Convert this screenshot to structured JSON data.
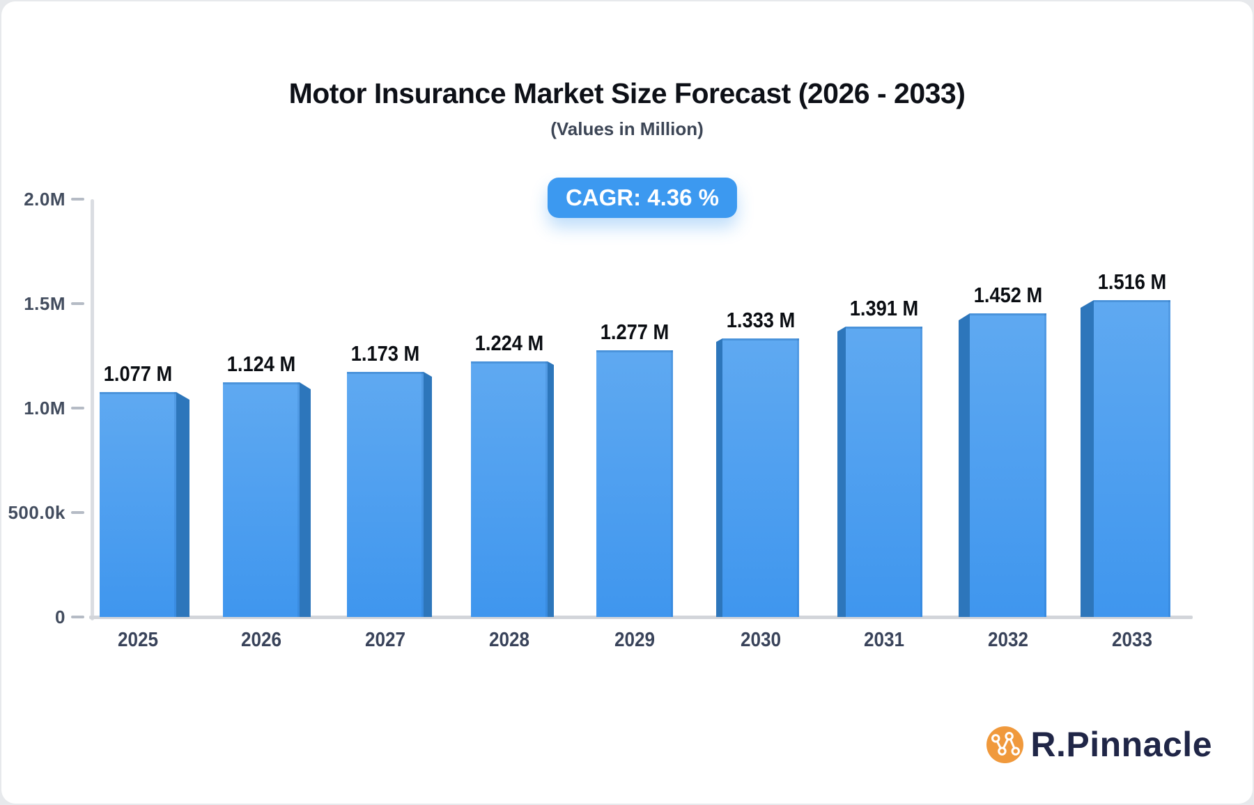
{
  "page": {
    "title": "Motor Insurance Market Size Forecast (2026 - 2033)",
    "subtitle": "(Values in Million)",
    "badge": "CAGR: 4.36 %",
    "logo_text": "R.Pinnacle",
    "logo_icon": "network-graph-icon"
  },
  "colors": {
    "page_bg": "#e7e9ec",
    "card": "#ffffff",
    "title": "#0d1017",
    "subtitle": "#3c4555",
    "badge_bg": "#3c99f0",
    "badge_text": "#ffffff",
    "bar_front_top": "#5fa9f1",
    "bar_front_bottom": "#3f96ee",
    "bar_side": "#2d76bb",
    "axis_line": "#dadde2",
    "baseline": "#d2d5da",
    "tick_dash": "#b5bbc5",
    "axis_label": "#424c5e",
    "year_label": "#39435a",
    "value_label": "#0a0d12",
    "logo_orange": "#f0993c",
    "logo_navy": "#202647"
  },
  "chart_data": {
    "type": "bar",
    "title": "Motor Insurance Market Size Forecast (2026 - 2033)",
    "subtitle": "(Values in Million)",
    "annotation": "CAGR: 4.36 %",
    "unit": "Million",
    "categories": [
      "2025",
      "2026",
      "2027",
      "2028",
      "2029",
      "2030",
      "2031",
      "2032",
      "2033"
    ],
    "values": [
      1.077,
      1.124,
      1.173,
      1.224,
      1.277,
      1.333,
      1.391,
      1.452,
      1.516
    ],
    "value_labels": [
      "1.077 M",
      "1.124 M",
      "1.173 M",
      "1.224 M",
      "1.277 M",
      "1.333 M",
      "1.391 M",
      "1.452 M",
      "1.516 M"
    ],
    "ylim": [
      0,
      2.0
    ],
    "yticks": [
      {
        "label": "2.0M",
        "value": 2.0
      },
      {
        "label": "1.5M",
        "value": 1.5
      },
      {
        "label": "1.0M",
        "value": 1.0
      },
      {
        "label": "500.0k",
        "value": 0.5
      },
      {
        "label": "0",
        "value": 0
      }
    ],
    "grid": false,
    "legend": "none",
    "bar_style": "3d-extruded-perspective"
  }
}
